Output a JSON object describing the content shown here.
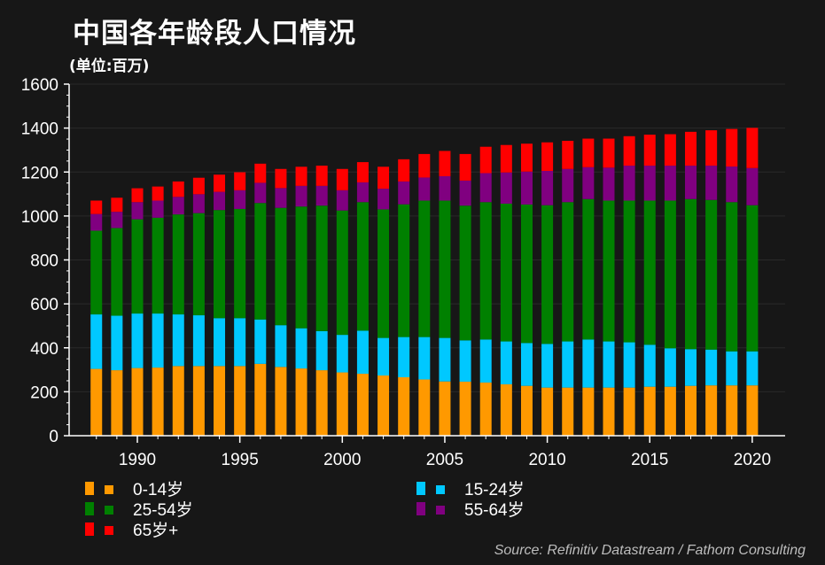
{
  "title": "中国各年龄段人口情况",
  "subtitle": "(单位:百万)",
  "source": "Source: Refinitiv Datastream / Fathom Consulting",
  "chart_data": {
    "type": "bar",
    "stacked": true,
    "title": "中国各年龄段人口情况",
    "ylabel": "(单位:百万)",
    "xlabel": "",
    "ylim": [
      0,
      1600
    ],
    "yticks": [
      "0",
      "200",
      "400",
      "600",
      "800",
      "1000",
      "1200",
      "1400",
      "1600"
    ],
    "xticks": [
      "1990",
      "1995",
      "2000",
      "2005",
      "2010",
      "2015",
      "2020"
    ],
    "grid": true,
    "legend_position": "bottom",
    "categories": [
      1988,
      1989,
      1990,
      1991,
      1992,
      1993,
      1994,
      1995,
      1996,
      1997,
      1998,
      1999,
      2000,
      2001,
      2002,
      2003,
      2004,
      2005,
      2006,
      2007,
      2008,
      2009,
      2010,
      2011,
      2012,
      2013,
      2014,
      2015,
      2016,
      2017,
      2018,
      2019,
      2020
    ],
    "series": [
      {
        "name": "0-14岁",
        "color": "#ff9900",
        "values": [
          304,
          298,
          308,
          310,
          317,
          317,
          317,
          317,
          327,
          313,
          306,
          298,
          288,
          282,
          274,
          266,
          256,
          247,
          246,
          242,
          234,
          227,
          219,
          219,
          219,
          219,
          219,
          223,
          223,
          227,
          229,
          229,
          229
        ]
      },
      {
        "name": "15-24岁",
        "color": "#00c8ff",
        "values": [
          248,
          248,
          248,
          246,
          235,
          231,
          218,
          218,
          202,
          190,
          183,
          178,
          171,
          196,
          171,
          183,
          193,
          198,
          188,
          196,
          195,
          195,
          199,
          210,
          219,
          210,
          206,
          191,
          175,
          167,
          163,
          155,
          155
        ]
      },
      {
        "name": "25-54岁",
        "color": "#008000",
        "values": [
          381,
          399,
          429,
          436,
          455,
          465,
          492,
          497,
          530,
          534,
          554,
          571,
          566,
          585,
          585,
          604,
          621,
          625,
          613,
          625,
          627,
          630,
          631,
          634,
          639,
          641,
          645,
          656,
          672,
          683,
          681,
          679,
          665
        ]
      },
      {
        "name": "55-64岁",
        "color": "#800080",
        "values": [
          76,
          74,
          78,
          78,
          80,
          86,
          83,
          85,
          92,
          90,
          94,
          90,
          92,
          90,
          94,
          104,
          105,
          111,
          114,
          132,
          142,
          150,
          156,
          151,
          145,
          150,
          159,
          159,
          159,
          152,
          156,
          162,
          169
        ]
      },
      {
        "name": "65岁+",
        "color": "#ff0000",
        "values": [
          61,
          64,
          63,
          64,
          70,
          75,
          78,
          82,
          87,
          87,
          87,
          92,
          97,
          92,
          100,
          101,
          107,
          115,
          121,
          120,
          125,
          127,
          130,
          128,
          130,
          132,
          134,
          141,
          143,
          154,
          161,
          171,
          183
        ]
      }
    ]
  }
}
